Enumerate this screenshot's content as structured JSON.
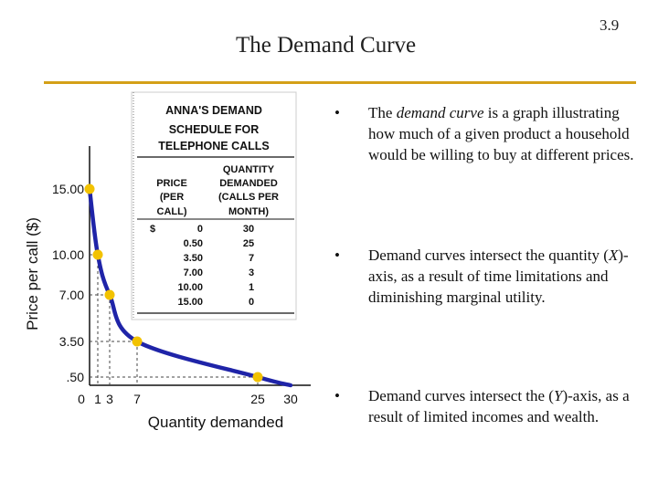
{
  "slide": {
    "title": "The Demand Curve",
    "number": "3.9"
  },
  "accent_color": "#d4a017",
  "curve_color": "#1f24a8",
  "point_color": "#f2c200",
  "table": {
    "title_lines": [
      "ANNA'S DEMAND",
      "SCHEDULE FOR",
      "TELEPHONE CALLS"
    ],
    "price_header": [
      "PRICE",
      "(PER",
      "CALL)"
    ],
    "quantity_header": [
      "QUANTITY",
      "DEMANDED",
      "(CALLS PER",
      "MONTH)"
    ],
    "currency_symbol": "$",
    "rows": [
      {
        "price": "0",
        "quantity": "30"
      },
      {
        "price": "0.50",
        "quantity": "25"
      },
      {
        "price": "3.50",
        "quantity": "7"
      },
      {
        "price": "7.00",
        "quantity": "3"
      },
      {
        "price": "10.00",
        "quantity": "1"
      },
      {
        "price": "15.00",
        "quantity": "0"
      }
    ]
  },
  "chart_data": {
    "type": "line",
    "xlabel": "Quantity demanded",
    "ylabel": "Price per call ($)",
    "x_ticks": [
      "0",
      "1",
      "3",
      "7",
      "25",
      "30"
    ],
    "y_ticks": [
      "15.00",
      "10.00",
      "7.00",
      "3.50",
      ".50"
    ],
    "x_tick_values": [
      0,
      1,
      3,
      7,
      25,
      30
    ],
    "y_tick_values": [
      15,
      10,
      7,
      3.5,
      0.5
    ],
    "points": [
      {
        "x": 0,
        "y": 15
      },
      {
        "x": 1,
        "y": 10
      },
      {
        "x": 3,
        "y": 7
      },
      {
        "x": 7,
        "y": 3.5
      },
      {
        "x": 25,
        "y": 0.5
      },
      {
        "x": 30,
        "y": 0
      }
    ]
  },
  "bullets": [
    {
      "marker": "•",
      "pre": "The ",
      "em": "demand curve",
      "post": " is a graph illustrating how much of a given product a household would be willing to buy at different prices."
    },
    {
      "marker": "•",
      "pre": "Demand curves intersect the quantity (",
      "em": "X",
      "post": ")-axis, as a result of time limitations and diminishing marginal utility."
    },
    {
      "marker": "•",
      "pre": "Demand curves intersect the (",
      "em": "Y",
      "post": ")-axis, as a result of limited incomes and wealth."
    }
  ]
}
